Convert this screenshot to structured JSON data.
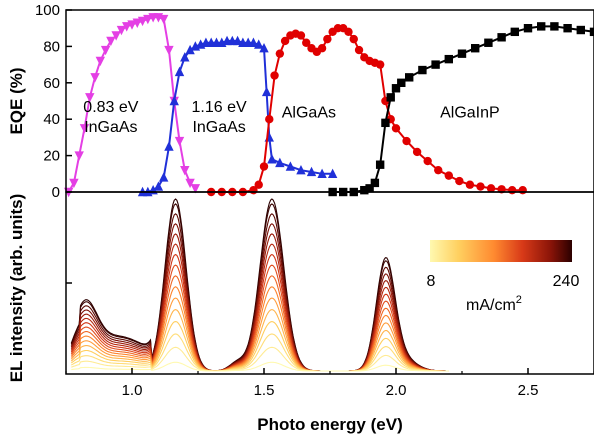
{
  "chart_data": [
    {
      "type": "line",
      "panel": "top",
      "ylabel": "EQE (%)",
      "ylim": [
        0,
        100
      ],
      "yticks": [
        0,
        20,
        40,
        60,
        80,
        100
      ],
      "xlim": [
        0.75,
        2.75
      ],
      "annotations": [
        {
          "lines": [
            "0.83 eV",
            "InGaAs"
          ],
          "x": 0.92,
          "y": 44
        },
        {
          "lines": [
            "1.16 eV",
            "InGaAs"
          ],
          "x": 1.33,
          "y": 44
        },
        {
          "lines": [
            "AlGaAs"
          ],
          "x": 1.67,
          "y": 41
        },
        {
          "lines": [
            "AlGaInP"
          ],
          "x": 2.28,
          "y": 41
        }
      ],
      "series": [
        {
          "color": "#e43fe4",
          "marker": "triangle-down",
          "points": [
            [
              0.76,
              0
            ],
            [
              0.78,
              5
            ],
            [
              0.8,
              20
            ],
            [
              0.82,
              35
            ],
            [
              0.84,
              52
            ],
            [
              0.86,
              63
            ],
            [
              0.88,
              72
            ],
            [
              0.9,
              78
            ],
            [
              0.92,
              83
            ],
            [
              0.94,
              86
            ],
            [
              0.96,
              89
            ],
            [
              0.98,
              91
            ],
            [
              1.0,
              92
            ],
            [
              1.02,
              93
            ],
            [
              1.04,
              94
            ],
            [
              1.06,
              95
            ],
            [
              1.08,
              96
            ],
            [
              1.1,
              96
            ],
            [
              1.12,
              95
            ],
            [
              1.14,
              78
            ],
            [
              1.16,
              50
            ],
            [
              1.18,
              28
            ],
            [
              1.2,
              12
            ],
            [
              1.22,
              5
            ],
            [
              1.24,
              2
            ]
          ]
        },
        {
          "color": "#2030d8",
          "marker": "triangle-up",
          "points": [
            [
              1.04,
              0
            ],
            [
              1.06,
              0
            ],
            [
              1.08,
              1
            ],
            [
              1.1,
              3
            ],
            [
              1.12,
              8
            ],
            [
              1.14,
              25
            ],
            [
              1.16,
              50
            ],
            [
              1.18,
              66
            ],
            [
              1.2,
              74
            ],
            [
              1.22,
              78
            ],
            [
              1.24,
              80
            ],
            [
              1.26,
              81
            ],
            [
              1.28,
              82
            ],
            [
              1.3,
              82
            ],
            [
              1.32,
              82
            ],
            [
              1.34,
              82
            ],
            [
              1.36,
              83
            ],
            [
              1.38,
              83
            ],
            [
              1.4,
              83
            ],
            [
              1.42,
              82
            ],
            [
              1.44,
              82
            ],
            [
              1.46,
              82
            ],
            [
              1.48,
              81
            ],
            [
              1.5,
              79
            ],
            [
              1.51,
              55
            ],
            [
              1.52,
              30
            ],
            [
              1.53,
              18
            ],
            [
              1.56,
              16
            ],
            [
              1.6,
              14
            ],
            [
              1.64,
              12
            ],
            [
              1.68,
              11
            ],
            [
              1.72,
              10
            ],
            [
              1.76,
              10
            ]
          ]
        },
        {
          "color": "#e00000",
          "marker": "circle",
          "points": [
            [
              1.3,
              0
            ],
            [
              1.34,
              0
            ],
            [
              1.38,
              0
            ],
            [
              1.42,
              0
            ],
            [
              1.46,
              1
            ],
            [
              1.48,
              4
            ],
            [
              1.5,
              14
            ],
            [
              1.52,
              40
            ],
            [
              1.54,
              64
            ],
            [
              1.56,
              76
            ],
            [
              1.58,
              83
            ],
            [
              1.6,
              86
            ],
            [
              1.62,
              87
            ],
            [
              1.64,
              86
            ],
            [
              1.66,
              82
            ],
            [
              1.68,
              79
            ],
            [
              1.7,
              77
            ],
            [
              1.72,
              79
            ],
            [
              1.74,
              84
            ],
            [
              1.76,
              88
            ],
            [
              1.78,
              90
            ],
            [
              1.8,
              90
            ],
            [
              1.82,
              88
            ],
            [
              1.84,
              84
            ],
            [
              1.86,
              78
            ],
            [
              1.88,
              74
            ],
            [
              1.9,
              72
            ],
            [
              1.92,
              71
            ],
            [
              1.94,
              70
            ],
            [
              1.96,
              50
            ],
            [
              1.98,
              40
            ],
            [
              2.0,
              35
            ],
            [
              2.04,
              28
            ],
            [
              2.08,
              22
            ],
            [
              2.12,
              17
            ],
            [
              2.16,
              12
            ],
            [
              2.2,
              9
            ],
            [
              2.24,
              6
            ],
            [
              2.28,
              4
            ],
            [
              2.32,
              3
            ],
            [
              2.36,
              2
            ],
            [
              2.4,
              1.5
            ],
            [
              2.44,
              1
            ],
            [
              2.48,
              1
            ]
          ]
        },
        {
          "color": "#000000",
          "marker": "square",
          "points": [
            [
              1.76,
              0
            ],
            [
              1.8,
              0
            ],
            [
              1.84,
              0
            ],
            [
              1.88,
              1
            ],
            [
              1.9,
              2
            ],
            [
              1.92,
              5
            ],
            [
              1.94,
              15
            ],
            [
              1.96,
              38
            ],
            [
              1.98,
              52
            ],
            [
              2.0,
              57
            ],
            [
              2.02,
              60
            ],
            [
              2.05,
              63
            ],
            [
              2.1,
              67
            ],
            [
              2.15,
              70
            ],
            [
              2.2,
              73
            ],
            [
              2.25,
              76
            ],
            [
              2.3,
              79
            ],
            [
              2.35,
              82
            ],
            [
              2.4,
              85
            ],
            [
              2.45,
              88
            ],
            [
              2.5,
              90
            ],
            [
              2.55,
              91
            ],
            [
              2.6,
              91
            ],
            [
              2.65,
              90
            ],
            [
              2.7,
              89
            ],
            [
              2.75,
              88
            ]
          ]
        }
      ]
    },
    {
      "type": "line",
      "panel": "bottom",
      "xlabel": "Photo energy (eV)",
      "ylabel": "EL intensity (arb. units)",
      "xlim": [
        0.75,
        2.75
      ],
      "xticks": [
        1.0,
        1.5,
        2.0,
        2.5
      ],
      "yscale": "log",
      "colorbar": {
        "min_label": "8",
        "max_label": "240",
        "unit_label": "mA/cm",
        "unit_sup": "2",
        "colors": [
          "#fff9b0",
          "#ffd060",
          "#ff8a30",
          "#d83a18",
          "#8a1408",
          "#2b0000"
        ]
      },
      "peaks": [
        {
          "center": 0.82,
          "height_ratio": 0.33
        },
        {
          "center": 1.16,
          "height_ratio": 1.0
        },
        {
          "center": 1.53,
          "height_ratio": 1.0
        },
        {
          "center": 1.96,
          "height_ratio": 0.6
        }
      ],
      "current_densities_mA_cm2": [
        8,
        24,
        40,
        56,
        72,
        88,
        104,
        120,
        136,
        152,
        168,
        184,
        200,
        216,
        232,
        240
      ]
    }
  ]
}
